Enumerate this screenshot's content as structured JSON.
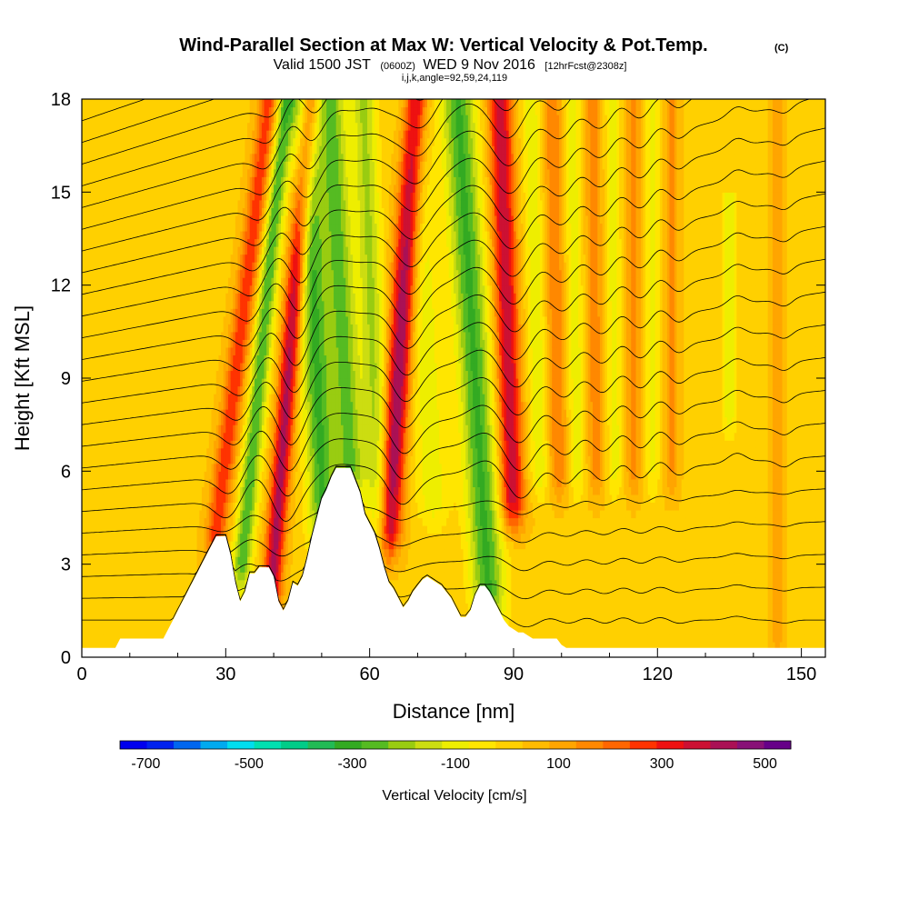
{
  "header": {
    "title": "Wind-Parallel Section at Max W: Vertical Velocity & Pot.Temp.",
    "copyright": "(C)",
    "valid_time": "Valid 1500 JST",
    "utc_time": "(0600Z)",
    "date": "WED 9 Nov 2016",
    "forecast": "[12hrFcst@2308z]",
    "indices": "i,j,k,angle=92,59,24,119"
  },
  "chart_data": {
    "type": "heatmap",
    "xlabel": "Distance [nm]",
    "ylabel": "Height [Kft MSL]",
    "xlim": [
      0,
      155
    ],
    "ylim": [
      0,
      18
    ],
    "x_ticks": [
      0,
      30,
      60,
      90,
      120,
      150
    ],
    "y_ticks": [
      0,
      3,
      6,
      9,
      12,
      15,
      18
    ],
    "x_tick_labels": [
      "0",
      "30",
      "60",
      "90",
      "120",
      "150"
    ],
    "y_tick_labels": [
      "0",
      "3",
      "6",
      "9",
      "12",
      "15",
      "18"
    ],
    "grid": false,
    "colorbar": {
      "label": "Vertical Velocity [cm/s]",
      "placement": "bottom",
      "tick_values": [
        -700,
        -500,
        -300,
        -100,
        100,
        300,
        500
      ],
      "tick_labels": [
        "-700",
        "-500",
        "-300",
        "-100",
        "100",
        "300",
        "500"
      ],
      "colors": [
        "#0000ee",
        "#0022ee",
        "#0066ee",
        "#00aaee",
        "#00ddee",
        "#00e0b0",
        "#00cc88",
        "#22bb55",
        "#33aa22",
        "#55bb22",
        "#99cc11",
        "#ccdd11",
        "#eeee00",
        "#ffe600",
        "#ffd000",
        "#ffbb00",
        "#ffa500",
        "#ff8800",
        "#ff6600",
        "#ff3300",
        "#ee1111",
        "#cc1133",
        "#aa1155",
        "#881177",
        "#660088"
      ]
    },
    "terrain_profile": {
      "x": [
        0,
        7,
        8,
        17,
        18,
        19,
        20,
        21,
        22,
        23,
        24,
        25,
        26,
        27,
        28,
        30,
        31,
        32,
        33,
        34,
        35,
        36,
        37,
        38,
        39,
        40,
        41,
        42,
        43,
        44,
        45,
        46,
        47,
        48,
        49,
        50,
        51,
        52,
        53,
        54,
        55,
        56,
        57,
        58,
        59,
        60,
        61,
        62,
        63,
        64,
        65,
        66,
        67,
        68,
        69,
        70,
        71,
        72,
        73,
        74,
        75,
        76,
        77,
        78,
        79,
        80,
        81,
        82,
        83,
        84,
        85,
        86,
        87,
        88,
        89,
        90,
        91,
        92,
        93,
        94,
        95,
        96,
        97,
        98,
        99,
        100,
        101,
        102,
        103,
        104,
        110,
        120,
        130,
        140,
        150,
        155
      ],
      "y": [
        0.3,
        0.3,
        0.6,
        0.6,
        0.9,
        1.2,
        1.5,
        1.8,
        2.1,
        2.4,
        2.7,
        3.0,
        3.3,
        3.6,
        3.9,
        3.9,
        3.3,
        2.4,
        1.8,
        2.1,
        2.7,
        2.7,
        2.9,
        2.9,
        2.9,
        2.6,
        1.8,
        1.5,
        1.8,
        2.4,
        2.3,
        2.6,
        3.2,
        3.9,
        4.5,
        5.1,
        5.4,
        5.8,
        6.1,
        6.1,
        6.1,
        6.1,
        5.7,
        5.3,
        4.6,
        4.3,
        4.0,
        3.5,
        2.9,
        2.4,
        2.2,
        1.9,
        1.6,
        1.8,
        2.1,
        2.3,
        2.5,
        2.6,
        2.5,
        2.4,
        2.3,
        2.1,
        1.9,
        1.6,
        1.3,
        1.3,
        1.5,
        2.0,
        2.3,
        2.3,
        2.1,
        1.8,
        1.5,
        1.2,
        1.0,
        0.9,
        0.8,
        0.8,
        0.7,
        0.6,
        0.6,
        0.6,
        0.6,
        0.6,
        0.6,
        0.4,
        0.3,
        0.3,
        0.3,
        0.3,
        0.3,
        0.3,
        0.3,
        0.3,
        0.3,
        0.3
      ]
    },
    "vertical_velocity_features": [
      {
        "x": 32,
        "width": 2.2,
        "z_min": 4,
        "z_max": 18,
        "tilt": 0.8,
        "w": 250
      },
      {
        "x": 37,
        "width": 2.0,
        "z_min": 3,
        "z_max": 18,
        "tilt": 0.6,
        "w": -280
      },
      {
        "x": 43,
        "width": 2.0,
        "z_min": 2,
        "z_max": 18,
        "tilt": 0.5,
        "w": 380
      },
      {
        "x": 49,
        "width": 3.0,
        "z_min": 4,
        "z_max": 18,
        "tilt": -0.3,
        "w": -300
      },
      {
        "x": 55,
        "width": 3.0,
        "z_min": 6,
        "z_max": 18,
        "tilt": -0.35,
        "w": -260
      },
      {
        "x": 61,
        "width": 2.5,
        "z_min": 4,
        "z_max": 18,
        "tilt": -0.25,
        "w": -200
      },
      {
        "x": 66,
        "width": 2.5,
        "z_min": 4,
        "z_max": 18,
        "tilt": 0.4,
        "w": 420
      },
      {
        "x": 72,
        "width": 3.5,
        "z_min": 5,
        "z_max": 18,
        "tilt": -0.3,
        "w": -120
      },
      {
        "x": 82,
        "width": 3.5,
        "z_min": 2,
        "z_max": 18,
        "tilt": -0.4,
        "w": -300
      },
      {
        "x": 89,
        "width": 2.5,
        "z_min": 5,
        "z_max": 18,
        "tilt": -0.2,
        "w": 350
      },
      {
        "x": 95,
        "width": 2.0,
        "z_min": 6,
        "z_max": 18,
        "tilt": -0.15,
        "w": -130
      },
      {
        "x": 99,
        "width": 2.0,
        "z_min": 6,
        "z_max": 18,
        "tilt": -0.1,
        "w": 160
      },
      {
        "x": 103,
        "width": 1.8,
        "z_min": 6,
        "z_max": 18,
        "tilt": -0.1,
        "w": -120
      },
      {
        "x": 107,
        "width": 1.8,
        "z_min": 6,
        "z_max": 18,
        "tilt": -0.05,
        "w": 140
      },
      {
        "x": 111,
        "width": 1.6,
        "z_min": 6,
        "z_max": 18,
        "tilt": -0.05,
        "w": -110
      },
      {
        "x": 115,
        "width": 1.6,
        "z_min": 6,
        "z_max": 18,
        "tilt": 0,
        "w": 130
      },
      {
        "x": 119,
        "width": 1.5,
        "z_min": 6,
        "z_max": 18,
        "tilt": 0,
        "w": -100
      },
      {
        "x": 123,
        "width": 1.5,
        "z_min": 6,
        "z_max": 18,
        "tilt": 0,
        "w": 120
      },
      {
        "x": 135,
        "width": 1.6,
        "z_min": 8,
        "z_max": 14,
        "tilt": 0,
        "w": -130
      },
      {
        "x": 145,
        "width": 1.4,
        "z_min": 1,
        "z_max": 18,
        "tilt": 0,
        "w": 110
      }
    ]
  }
}
